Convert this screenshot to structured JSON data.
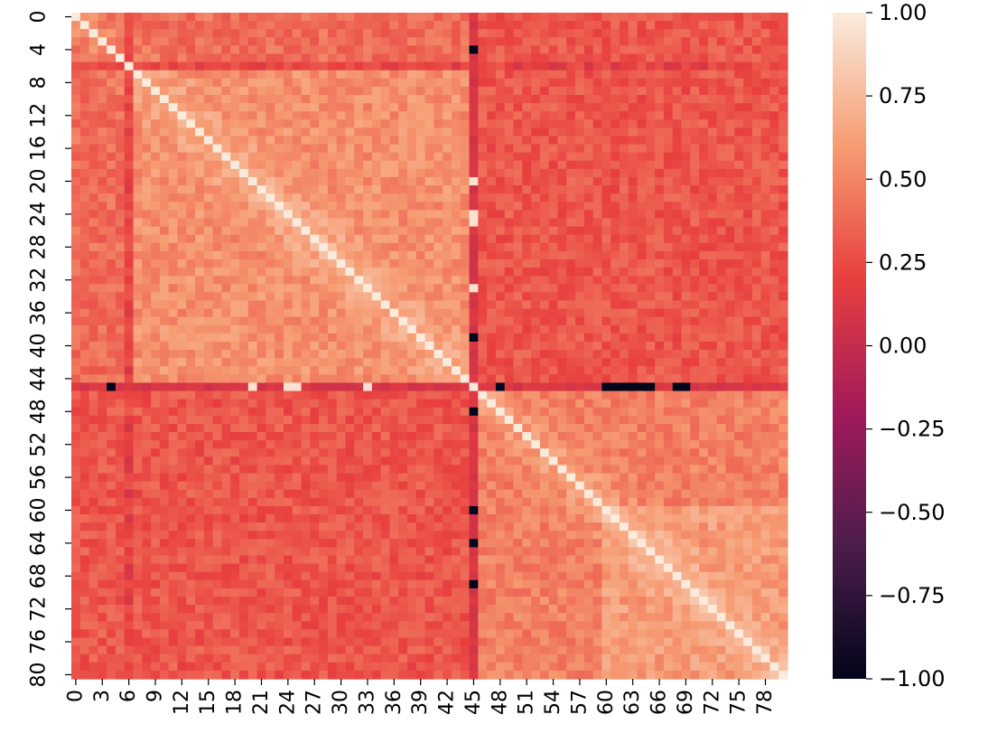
{
  "chart_data": {
    "type": "heatmap",
    "title": "",
    "xlabel": "",
    "ylabel": "",
    "n": 81,
    "x_tick_labels": [
      "0",
      "3",
      "6",
      "9",
      "12",
      "15",
      "18",
      "21",
      "24",
      "27",
      "30",
      "33",
      "36",
      "39",
      "42",
      "45",
      "48",
      "51",
      "54",
      "57",
      "60",
      "63",
      "66",
      "69",
      "72",
      "75",
      "78"
    ],
    "y_tick_labels": [
      "0",
      "4",
      "8",
      "12",
      "16",
      "20",
      "24",
      "28",
      "32",
      "36",
      "40",
      "44",
      "48",
      "52",
      "56",
      "60",
      "64",
      "68",
      "72",
      "76",
      "80"
    ],
    "colorbar": {
      "min": -1.0,
      "max": 1.0,
      "ticks": [
        "1.00",
        "0.75",
        "0.50",
        "0.25",
        "0.00",
        "−0.25",
        "−0.50",
        "−0.75",
        "−1.00"
      ]
    },
    "colormap": [
      "#03051a",
      "#4c1d4b",
      "#a11a5b",
      "#e83f3f",
      "#f69c73",
      "#faebdd"
    ],
    "pattern": {
      "diagonal": 1.0,
      "block_boundary_index": 45,
      "upper_block": {
        "range": [
          0,
          44
        ],
        "typical": [
          0.3,
          0.7
        ],
        "core_range": [
          7,
          44
        ],
        "core_typical": 0.55
      },
      "lower_block": {
        "range": [
          46,
          80
        ],
        "typical": [
          0.35,
          0.7
        ],
        "core_range": [
          60,
          80
        ],
        "core_typical": 0.6
      },
      "cross_block_typical": 0.3,
      "row_column_45_typical": 0.1,
      "row_column_6_typical": 0.2,
      "row_column_45_extremes": {
        "low_-1": [
          4,
          39,
          61,
          62,
          63,
          65,
          69,
          48,
          60,
          61,
          62,
          64,
          68
        ],
        "high_1": [
          20,
          21,
          25,
          27,
          30,
          33,
          24
        ]
      }
    }
  }
}
